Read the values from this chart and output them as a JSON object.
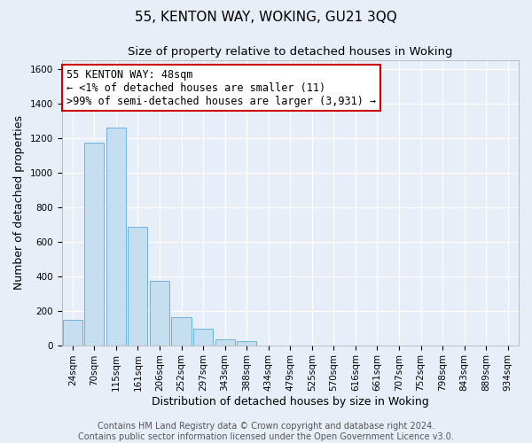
{
  "title": "55, KENTON WAY, WOKING, GU21 3QQ",
  "subtitle": "Size of property relative to detached houses in Woking",
  "xlabel": "Distribution of detached houses by size in Woking",
  "ylabel": "Number of detached properties",
  "bin_labels": [
    "24sqm",
    "70sqm",
    "115sqm",
    "161sqm",
    "206sqm",
    "252sqm",
    "297sqm",
    "343sqm",
    "388sqm",
    "434sqm",
    "479sqm",
    "525sqm",
    "570sqm",
    "616sqm",
    "661sqm",
    "707sqm",
    "752sqm",
    "798sqm",
    "843sqm",
    "889sqm",
    "934sqm"
  ],
  "bar_values": [
    148,
    1175,
    1258,
    688,
    375,
    163,
    93,
    35,
    22,
    0,
    0,
    0,
    0,
    0,
    0,
    0,
    0,
    0,
    0,
    0,
    0
  ],
  "bar_color": "#c5dff0",
  "bar_edge_color": "#5baad8",
  "annotation_line1": "55 KENTON WAY: 48sqm",
  "annotation_line2": "← <1% of detached houses are smaller (11)",
  "annotation_line3": ">99% of semi-detached houses are larger (3,931) →",
  "annotation_box_color": "white",
  "annotation_box_edge_color": "#cc0000",
  "footer_text": "Contains HM Land Registry data © Crown copyright and database right 2024.\nContains public sector information licensed under the Open Government Licence v3.0.",
  "ylim": [
    0,
    1650
  ],
  "yticks": [
    0,
    200,
    400,
    600,
    800,
    1000,
    1200,
    1400,
    1600
  ],
  "background_color": "#e8eef8",
  "plot_bg_color": "#e8eef8",
  "grid_color": "#ffffff",
  "title_fontsize": 11,
  "subtitle_fontsize": 9.5,
  "axis_label_fontsize": 9,
  "tick_fontsize": 7.5,
  "annotation_fontsize": 8.5,
  "footer_fontsize": 7
}
